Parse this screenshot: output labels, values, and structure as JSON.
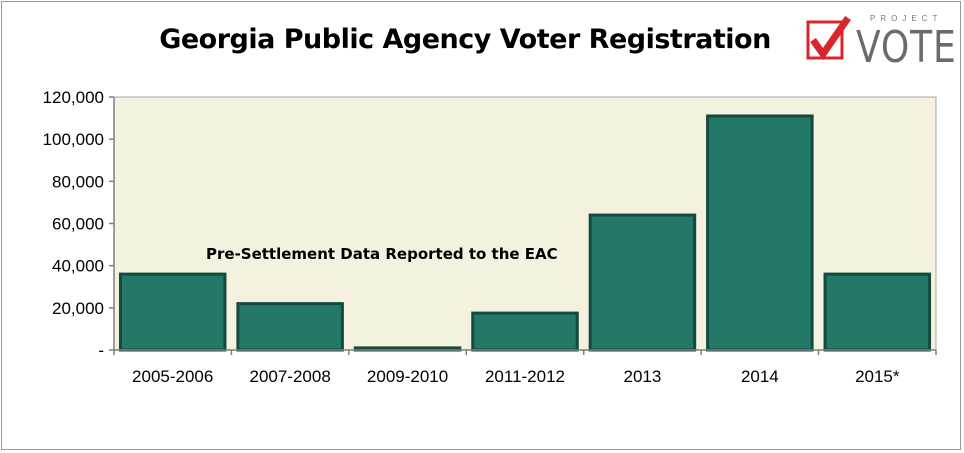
{
  "title": "Georgia Public Agency Voter Registration",
  "logo": {
    "small_text": "PROJECT",
    "big_text": "VOTE"
  },
  "annotation": "Pre-Settlement Data Reported to the EAC",
  "colors": {
    "bar_fill": "#237868",
    "bar_stroke": "#144a40",
    "plot_bg": "#f4f1df",
    "logo_red": "#d9262c"
  },
  "chart_data": {
    "type": "bar",
    "title": "Georgia Public Agency Voter Registration",
    "categories": [
      "2005-2006",
      "2007-2008",
      "2009-2010",
      "2011-2012",
      "2013",
      "2014",
      "2015*"
    ],
    "values": [
      36000,
      22000,
      1000,
      17500,
      64000,
      111000,
      36000
    ],
    "ylim": [
      0,
      120000
    ],
    "yticks": [
      0,
      20000,
      40000,
      60000,
      80000,
      100000,
      120000
    ],
    "ytick_labels": [
      "-",
      "20,000",
      "40,000",
      "60,000",
      "80,000",
      "100,000",
      "120,000"
    ],
    "xlabel": "",
    "ylabel": "",
    "grid": false,
    "legend": "none"
  }
}
